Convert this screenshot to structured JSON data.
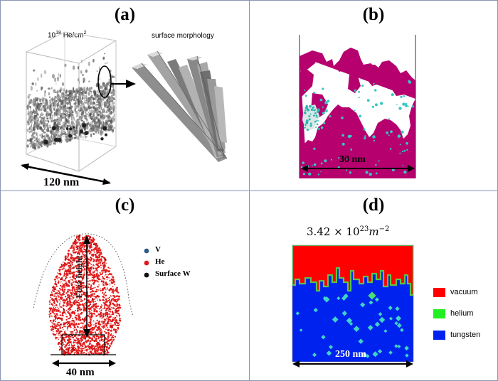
{
  "panels": {
    "a": {
      "label": "(a)",
      "fluence_base": "10",
      "fluence_exp": "18",
      "fluence_unit": " He/cm",
      "fluence_unit_exp": "2",
      "inset_title": "surface morphology",
      "scale": "120 nm"
    },
    "b": {
      "label": "(b)",
      "scale": "30 nm"
    },
    "c": {
      "label": "(c)",
      "legend": [
        {
          "label": "V",
          "color": "#2c5b8c"
        },
        {
          "label": "He",
          "color": "#e21a1a"
        },
        {
          "label": "Surface W",
          "color": "#111111"
        }
      ],
      "height_label": "Fuzz height",
      "scale": "40 nm"
    },
    "d": {
      "label": "(d)",
      "fluence_mantissa": "3.42 × 10",
      "fluence_exp": "23",
      "fluence_unit": "m",
      "fluence_unit_exp": "−2",
      "legend": [
        {
          "label": "vacuum",
          "color": "#ff0000"
        },
        {
          "label": "helium",
          "color": "#22ee22"
        },
        {
          "label": "tungsten",
          "color": "#0022ee"
        }
      ],
      "scale": "250 nm"
    }
  }
}
